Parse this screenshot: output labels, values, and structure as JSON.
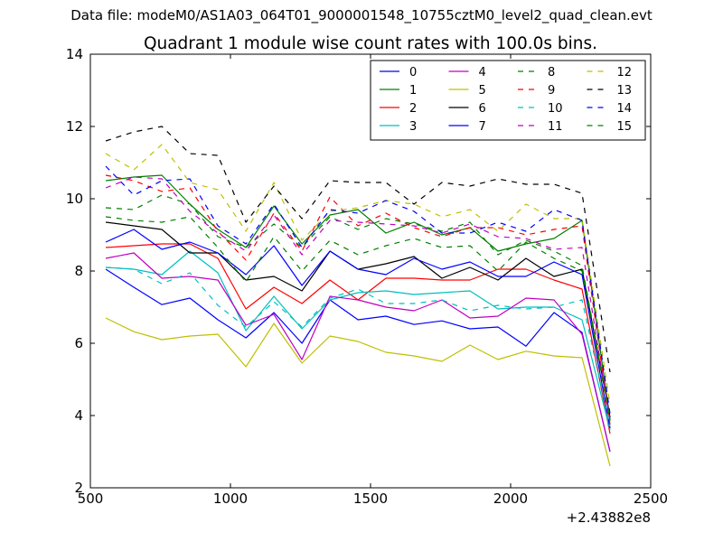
{
  "suptitle": "Data file: modeM0/AS1A03_064T01_9000001548_10755cztM0_level2_quad_clean.evt",
  "chart_data": {
    "type": "line",
    "title": "Quadrant 1 module wise count rates with 100.0s bins.",
    "xlabel": "",
    "ylabel": "",
    "x_offset_label": "+2.43882e8",
    "xlim": [
      500,
      2500
    ],
    "ylim": [
      2,
      14
    ],
    "x_ticks": [
      500,
      1000,
      1500,
      2000,
      2500
    ],
    "y_ticks": [
      2,
      4,
      6,
      8,
      10,
      12,
      14
    ],
    "grid": false,
    "legend_position": "top-right",
    "legend_columns": 4,
    "x": [
      555,
      655,
      755,
      855,
      955,
      1055,
      1155,
      1255,
      1355,
      1455,
      1555,
      1655,
      1755,
      1855,
      1955,
      2055,
      2155,
      2255,
      2355
    ],
    "series": [
      {
        "name": "0",
        "color": "#0000ff",
        "dash": "solid",
        "values": [
          8.05,
          7.55,
          7.07,
          7.25,
          6.65,
          6.15,
          6.85,
          6.0,
          7.2,
          6.65,
          6.75,
          6.52,
          6.62,
          6.4,
          6.45,
          5.92,
          6.85,
          6.3,
          3.0
        ]
      },
      {
        "name": "1",
        "color": "#008000",
        "dash": "solid",
        "values": [
          10.5,
          10.6,
          10.65,
          9.85,
          9.15,
          8.65,
          9.8,
          8.75,
          9.55,
          9.7,
          9.05,
          9.35,
          9.0,
          9.2,
          8.55,
          8.75,
          8.9,
          9.4,
          3.9
        ]
      },
      {
        "name": "2",
        "color": "#ff0000",
        "dash": "solid",
        "values": [
          8.65,
          8.7,
          8.75,
          8.75,
          8.35,
          6.95,
          7.55,
          7.1,
          7.75,
          7.2,
          7.8,
          7.8,
          7.75,
          7.75,
          8.05,
          8.05,
          7.75,
          7.5,
          3.5
        ]
      },
      {
        "name": "3",
        "color": "#00bfbf",
        "dash": "solid",
        "values": [
          8.1,
          8.05,
          7.9,
          8.55,
          7.95,
          6.35,
          7.3,
          6.4,
          7.2,
          7.4,
          7.45,
          7.35,
          7.4,
          7.45,
          6.95,
          7.0,
          7.0,
          6.65,
          3.6
        ]
      },
      {
        "name": "4",
        "color": "#bf00bf",
        "dash": "solid",
        "values": [
          8.35,
          8.5,
          7.8,
          7.85,
          7.75,
          6.5,
          6.8,
          5.55,
          7.3,
          7.2,
          7.0,
          6.9,
          7.2,
          6.7,
          6.75,
          7.25,
          7.2,
          6.25,
          3.0
        ]
      },
      {
        "name": "5",
        "color": "#bfbf00",
        "dash": "solid",
        "values": [
          6.7,
          6.32,
          6.1,
          6.2,
          6.25,
          5.35,
          6.55,
          5.45,
          6.2,
          6.05,
          5.75,
          5.65,
          5.5,
          5.95,
          5.55,
          5.78,
          5.65,
          5.6,
          2.6
        ]
      },
      {
        "name": "6",
        "color": "#000000",
        "dash": "solid",
        "values": [
          9.35,
          9.25,
          9.15,
          8.5,
          8.5,
          7.75,
          7.85,
          7.45,
          8.55,
          8.05,
          8.2,
          8.4,
          7.8,
          8.1,
          7.75,
          8.35,
          7.85,
          8.05,
          3.95
        ]
      },
      {
        "name": "7",
        "color": "#0000ff",
        "dash": "solid",
        "values": [
          8.8,
          9.15,
          8.6,
          8.8,
          8.5,
          7.9,
          8.7,
          7.6,
          8.55,
          8.05,
          7.9,
          8.35,
          8.05,
          8.25,
          7.85,
          7.85,
          8.25,
          7.9,
          3.65
        ]
      },
      {
        "name": "8",
        "color": "#008000",
        "dash": "dashed",
        "values": [
          9.75,
          9.7,
          10.1,
          9.85,
          8.95,
          8.65,
          9.3,
          8.65,
          9.5,
          9.15,
          9.45,
          9.3,
          9.1,
          9.35,
          8.45,
          8.85,
          8.55,
          8.15,
          3.95
        ]
      },
      {
        "name": "9",
        "color": "#ff0000",
        "dash": "dashed",
        "values": [
          10.65,
          10.5,
          10.2,
          10.3,
          9.1,
          8.3,
          9.6,
          8.55,
          10.05,
          9.25,
          9.6,
          9.2,
          8.95,
          9.2,
          9.2,
          9.0,
          9.15,
          9.25,
          3.75
        ]
      },
      {
        "name": "10",
        "color": "#00bfbf",
        "dash": "dashed",
        "values": [
          8.1,
          8.05,
          7.65,
          7.95,
          7.05,
          6.45,
          7.15,
          6.45,
          7.25,
          7.5,
          7.1,
          7.1,
          7.2,
          6.9,
          7.05,
          6.95,
          7.0,
          7.2,
          3.7
        ]
      },
      {
        "name": "11",
        "color": "#bf00bf",
        "dash": "dashed",
        "values": [
          10.3,
          10.6,
          10.55,
          9.65,
          9.05,
          8.55,
          9.55,
          8.45,
          9.4,
          9.35,
          9.3,
          9.25,
          9.05,
          9.3,
          8.95,
          8.9,
          8.6,
          8.65,
          3.85
        ]
      },
      {
        "name": "12",
        "color": "#bfbf00",
        "dash": "dashed",
        "values": [
          11.25,
          10.8,
          11.5,
          10.45,
          10.25,
          9.1,
          10.45,
          8.85,
          9.65,
          9.75,
          9.95,
          9.85,
          9.5,
          9.7,
          9.1,
          9.85,
          9.45,
          9.45,
          4.3
        ]
      },
      {
        "name": "13",
        "color": "#000000",
        "dash": "dashed",
        "values": [
          11.6,
          11.85,
          12.0,
          11.25,
          11.2,
          9.35,
          10.35,
          9.45,
          10.5,
          10.45,
          10.45,
          9.85,
          10.45,
          10.35,
          10.55,
          10.4,
          10.4,
          10.15,
          5.2
        ]
      },
      {
        "name": "14",
        "color": "#0000ff",
        "dash": "dashed",
        "values": [
          10.9,
          10.1,
          10.5,
          10.55,
          9.25,
          8.75,
          9.85,
          8.65,
          9.7,
          9.6,
          9.95,
          9.65,
          9.05,
          9.05,
          9.35,
          9.1,
          9.7,
          9.4,
          4.05
        ]
      },
      {
        "name": "15",
        "color": "#008000",
        "dash": "dashed",
        "values": [
          9.5,
          9.4,
          9.35,
          9.5,
          8.65,
          7.7,
          8.95,
          8.0,
          8.85,
          8.45,
          8.7,
          8.9,
          8.65,
          8.7,
          8.0,
          8.8,
          8.35,
          8.0,
          3.85
        ]
      }
    ]
  }
}
